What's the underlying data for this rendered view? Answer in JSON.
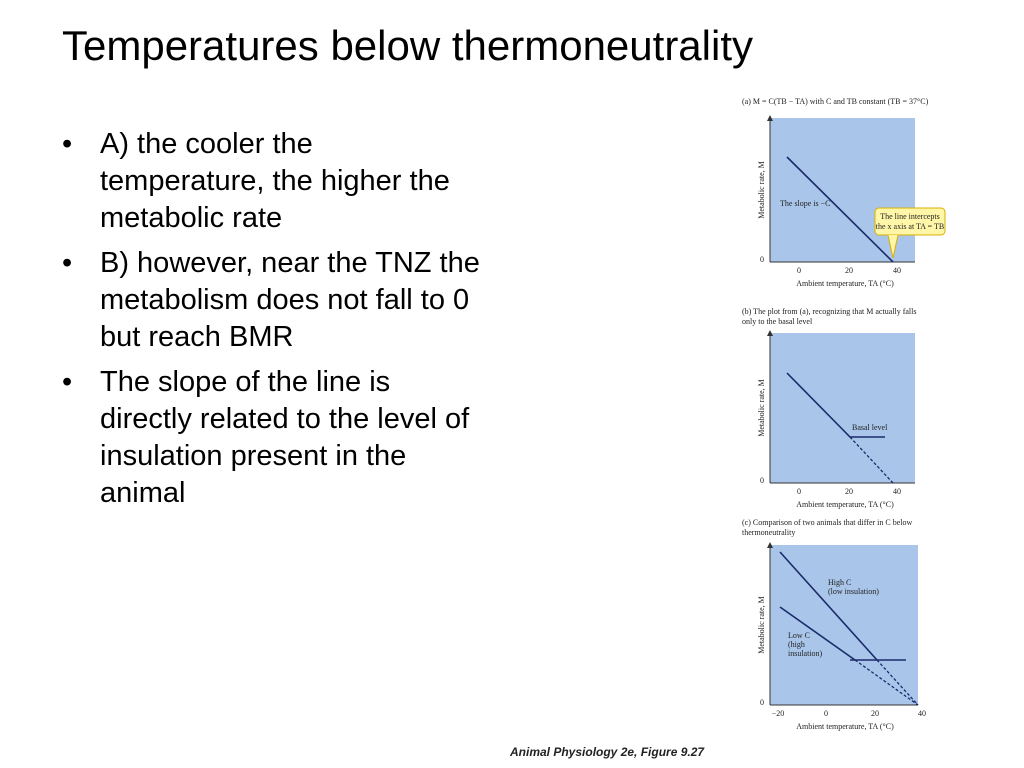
{
  "slide": {
    "title": "Temperatures below thermoneutrality",
    "bullets": [
      "A) the cooler the temperature, the higher the metabolic rate",
      "B) however, near the TNZ the metabolism does not fall to 0 but reach BMR",
      "The slope of the line is directly related to the level of insulation present in the animal"
    ],
    "figure": {
      "panels": [
        {
          "caption": [
            "(a) M = C(TB − TA) with C and TB constant (TB = 37°C)"
          ],
          "y_label": "Metabolic rate, M",
          "x_label": "Ambient temperature, TA (°C)",
          "y_zero": "0",
          "x_ticks": [
            "0",
            "20",
            "40"
          ],
          "notes": [
            "The slope is −C"
          ],
          "callout": [
            "The line intercepts",
            "the x axis at TA = TB"
          ]
        },
        {
          "caption": [
            "(b) The plot from (a), recognizing that M actually falls",
            "only to the basal level"
          ],
          "y_label": "Metabolic rate, M",
          "x_label": "Ambient temperature, TA (°C)",
          "y_zero": "0",
          "x_ticks": [
            "0",
            "20",
            "40"
          ],
          "notes": [
            "Basal level"
          ]
        },
        {
          "caption": [
            "(c) Comparison of two animals that differ in C below",
            "thermoneutrality"
          ],
          "y_label": "Metabolic rate, M",
          "x_label": "Ambient temperature, TA (°C)",
          "y_zero": "0",
          "x_ticks": [
            "−20",
            "0",
            "20",
            "40"
          ],
          "high_c": [
            "High C",
            "(low insulation)"
          ],
          "low_c": [
            "Low C",
            "(high",
            "insulation)"
          ]
        }
      ],
      "credit": "Animal Physiology 2e, Figure 9.27"
    }
  }
}
